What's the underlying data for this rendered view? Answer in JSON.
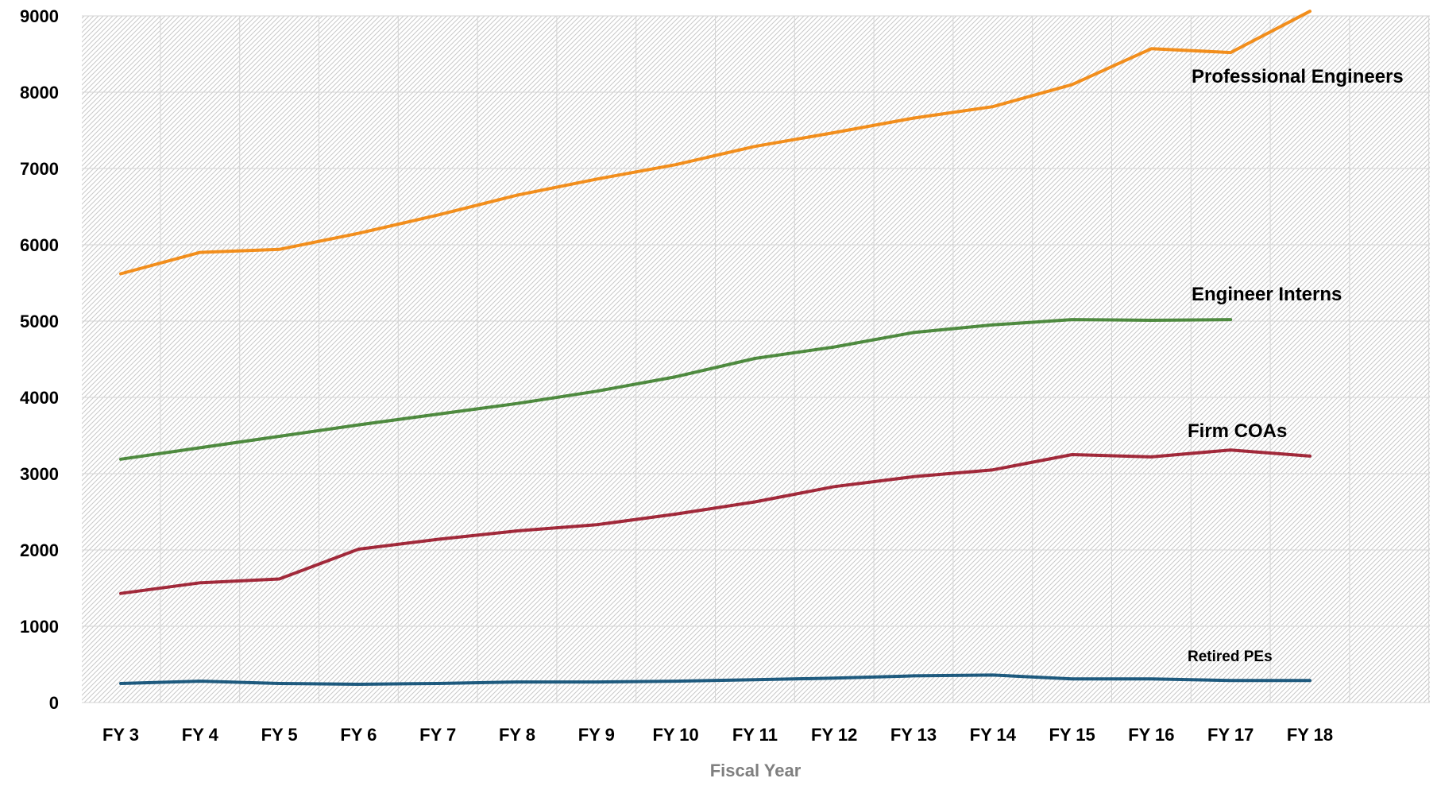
{
  "chart_data": {
    "type": "line",
    "title": "",
    "xlabel": "Fiscal Year",
    "ylabel": "",
    "categories": [
      "FY 3",
      "FY 4",
      "FY 5",
      "FY 6",
      "FY 7",
      "FY 8",
      "FY 9",
      "FY 10",
      "FY 11",
      "FY 12",
      "FY 13",
      "FY 14",
      "FY 15",
      "FY 16",
      "FY 17",
      "FY 18"
    ],
    "ylim": [
      0,
      9000
    ],
    "yticks": [
      "0",
      "1000",
      "2000",
      "3000",
      "4000",
      "5000",
      "6000",
      "7000",
      "8000",
      "9000"
    ],
    "grid": true,
    "legend": "none (series labeled directly on the chart)",
    "series": [
      {
        "name": "Professional Engineers",
        "color": "#f28e1c",
        "values": [
          5620,
          5900,
          5940,
          6150,
          6390,
          6650,
          6860,
          7050,
          7290,
          7470,
          7660,
          7810,
          8100,
          8570,
          8520,
          9060
        ]
      },
      {
        "name": "Engineer Interns",
        "color": "#4e8a3f",
        "values": [
          3190,
          3340,
          3490,
          3640,
          3780,
          3920,
          4080,
          4270,
          4510,
          4660,
          4850,
          4950,
          5020,
          5010,
          5020,
          null
        ]
      },
      {
        "name": "Firm COAs",
        "color": "#a1293a",
        "values": [
          1430,
          1570,
          1620,
          2010,
          2140,
          2250,
          2330,
          2470,
          2630,
          2830,
          2960,
          3050,
          3250,
          3220,
          3310,
          3230
        ]
      },
      {
        "name": "Retired PEs",
        "color": "#1e5a7e",
        "values": [
          250,
          280,
          250,
          240,
          250,
          270,
          270,
          280,
          300,
          320,
          350,
          360,
          310,
          310,
          290,
          290
        ]
      }
    ]
  }
}
